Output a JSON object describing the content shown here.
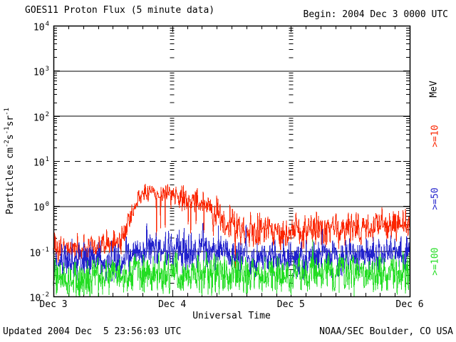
{
  "header": {
    "title": "GOES11 Proton Flux (5 minute data)",
    "begin": "Begin: 2004 Dec 3 0000 UTC"
  },
  "footer": {
    "updated": "Updated 2004 Dec  5 23:56:03 UTC",
    "org": "NOAA/SEC Boulder, CO USA"
  },
  "chart_data": {
    "type": "line",
    "title": "GOES11 Proton Flux (5 minute data)",
    "xlabel": "Universal Time",
    "ylabel_parts": [
      {
        "t": "Particles cm"
      },
      {
        "t": "-2",
        "sup": true
      },
      {
        "t": "s"
      },
      {
        "t": "-1",
        "sup": true
      },
      {
        "t": "sr"
      },
      {
        "t": "-1",
        "sup": true
      }
    ],
    "right_axis_label": "MeV",
    "colors": {
      "background": "#ffffff",
      "foreground": "#000000"
    },
    "x_axis": {
      "start": "2004 Dec 3 0000 UTC",
      "days": 3,
      "minor_tick_hours": 3,
      "ticks": [
        {
          "label": "Dec 3",
          "day": 0
        },
        {
          "label": "Dec 4",
          "day": 1
        },
        {
          "label": "Dec 5",
          "day": 2
        },
        {
          "label": "Dec 6",
          "day": 3
        }
      ]
    },
    "y_axis": {
      "scale": "log",
      "ylim": [
        0.01,
        10000
      ],
      "tick_exponents": [
        4,
        3,
        2,
        1,
        0,
        -1,
        -2
      ]
    },
    "gridlines": {
      "solid": [
        1000,
        100,
        1,
        0.1
      ],
      "dashed": [
        10
      ],
      "day_boundary_columns": [
        1,
        2
      ]
    },
    "cadence_minutes": 5,
    "points_per_day": 288,
    "noise_seed": 20041203,
    "series": [
      {
        "name": ">=10",
        "unit": "MeV",
        "color": "#fb2500",
        "envelope": [
          [
            0,
            0.12
          ],
          [
            0.35,
            0.12
          ],
          [
            0.5,
            0.13
          ],
          [
            0.56,
            0.16
          ],
          [
            0.61,
            0.3
          ],
          [
            0.65,
            0.6
          ],
          [
            0.7,
            1.3
          ],
          [
            0.75,
            1.9
          ],
          [
            0.82,
            2.1
          ],
          [
            0.92,
            1.95
          ],
          [
            1.0,
            1.9
          ],
          [
            1.08,
            1.55
          ],
          [
            1.17,
            1.3
          ],
          [
            1.27,
            1.0
          ],
          [
            1.37,
            0.7
          ],
          [
            1.47,
            0.45
          ],
          [
            1.57,
            0.35
          ],
          [
            1.7,
            0.3
          ],
          [
            1.9,
            0.27
          ],
          [
            2.1,
            0.29
          ],
          [
            2.3,
            0.3
          ],
          [
            2.5,
            0.32
          ],
          [
            2.7,
            0.34
          ],
          [
            2.9,
            0.37
          ],
          [
            3,
            0.4
          ]
        ],
        "noise_dec": [
          [
            0,
            0.42
          ],
          [
            0.55,
            0.42
          ],
          [
            0.65,
            0.3
          ],
          [
            0.75,
            0.22
          ],
          [
            1,
            0.25
          ],
          [
            1.2,
            0.38
          ],
          [
            1.45,
            0.48
          ],
          [
            1.8,
            0.45
          ],
          [
            3,
            0.45
          ]
        ],
        "spikes": [
          {
            "t0": 0.85,
            "t1": 1.8,
            "prob": 0.05,
            "min": 0.3,
            "max": 0.9,
            "sign": -1
          }
        ]
      },
      {
        "name": ">=50",
        "unit": "MeV",
        "color": "#2222cc",
        "envelope": [
          [
            0,
            0.06
          ],
          [
            0.35,
            0.058
          ],
          [
            0.55,
            0.062
          ],
          [
            0.65,
            0.085
          ],
          [
            0.75,
            0.105
          ],
          [
            0.95,
            0.105
          ],
          [
            1.15,
            0.095
          ],
          [
            1.35,
            0.085
          ],
          [
            1.6,
            0.075
          ],
          [
            2,
            0.07
          ],
          [
            2.4,
            0.074
          ],
          [
            2.8,
            0.08
          ],
          [
            3,
            0.085
          ]
        ],
        "noise_dec": [
          [
            0,
            0.5
          ],
          [
            3,
            0.5
          ]
        ],
        "spikes": [
          {
            "t0": 0.55,
            "t1": 1.45,
            "prob": 0.05,
            "min": 0.2,
            "max": 0.55,
            "sign": 1
          },
          {
            "t0": 0,
            "t1": 3,
            "prob": 0.02,
            "min": 0.15,
            "max": 0.35,
            "sign": 1
          }
        ]
      },
      {
        "name": ">=100",
        "unit": "MeV",
        "color": "#22dd22",
        "envelope": [
          [
            0,
            0.027
          ],
          [
            0.5,
            0.026
          ],
          [
            0.7,
            0.031
          ],
          [
            1,
            0.033
          ],
          [
            1.5,
            0.029
          ],
          [
            2,
            0.029
          ],
          [
            2.5,
            0.031
          ],
          [
            3,
            0.032
          ]
        ],
        "noise_dec": [
          [
            0,
            0.55
          ],
          [
            3,
            0.55
          ]
        ],
        "spikes": [
          {
            "t0": 0,
            "t1": 3,
            "prob": 0.03,
            "min": 0.15,
            "max": 0.45,
            "sign": 1
          }
        ]
      }
    ]
  }
}
